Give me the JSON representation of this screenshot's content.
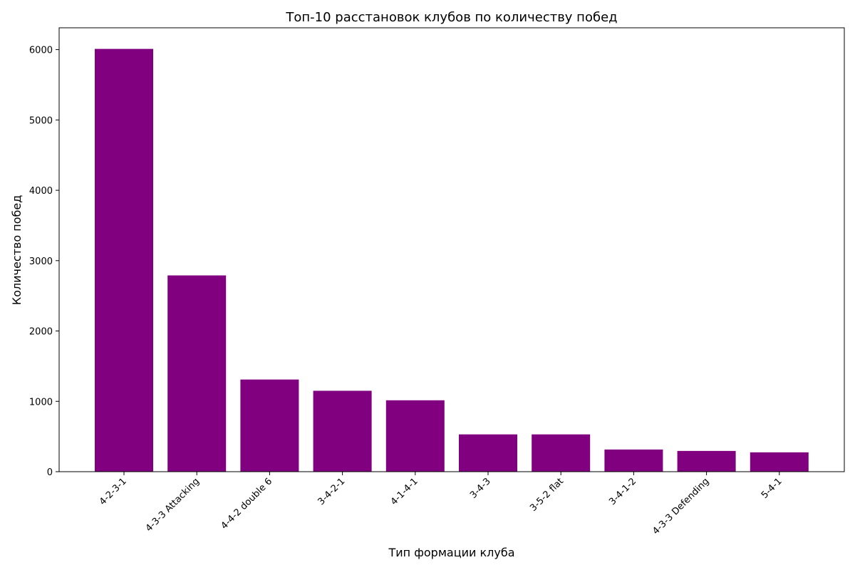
{
  "chart_data": {
    "type": "bar",
    "title": "Топ-10 расстановок клубов по количеству побед",
    "xlabel": "Тип формации клуба",
    "ylabel": "Количество побед",
    "categories": [
      "4-2-3-1",
      "4-3-3 Attacking",
      "4-4-2 double 6",
      "3-4-2-1",
      "4-1-4-1",
      "3-4-3",
      "3-5-2 flat",
      "3-4-1-2",
      "4-3-3 Defending",
      "5-4-1"
    ],
    "values": [
      6010,
      2790,
      1310,
      1150,
      1015,
      530,
      530,
      315,
      295,
      275
    ],
    "ylim": [
      0,
      6310
    ],
    "yticks": [
      0,
      1000,
      2000,
      3000,
      4000,
      5000,
      6000
    ],
    "bar_color": "#800080",
    "grid": false,
    "legend": "none"
  }
}
